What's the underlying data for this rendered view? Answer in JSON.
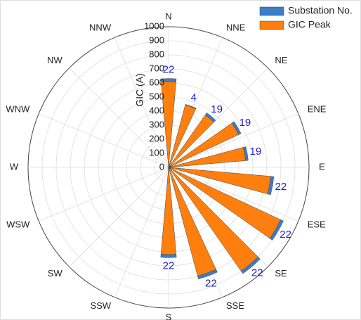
{
  "chart_data": {
    "type": "polar_bar",
    "y_label": "GIC (A)",
    "x": [
      0,
      20,
      40,
      60,
      80,
      100,
      120,
      140,
      160,
      180
    ],
    "series": [
      {
        "name": "GIC Peak",
        "color": "#ff7f0e",
        "values": [
          610,
          460,
          455,
          550,
          550,
          730,
          880,
          900,
          800,
          620
        ]
      },
      {
        "name": "Substation No.",
        "color": "#3a7dc8",
        "values": [
          22,
          4,
          19,
          19,
          19,
          22,
          22,
          22,
          22,
          22
        ]
      }
    ],
    "legend_order": [
      "Substation No.",
      "GIC Peak"
    ],
    "ylim": [
      0,
      1000
    ],
    "yticks": [
      0,
      100,
      200,
      300,
      400,
      500,
      600,
      700,
      800,
      900,
      1000
    ],
    "xticks": [
      {
        "value": 0,
        "label": "N"
      },
      {
        "value": 22.5,
        "label": "NNE"
      },
      {
        "value": 45,
        "label": "NE"
      },
      {
        "value": 67.5,
        "label": "ENE"
      },
      {
        "value": 90,
        "label": "E"
      },
      {
        "value": 112.5,
        "label": "ESE"
      },
      {
        "value": 135,
        "label": "SE"
      },
      {
        "value": 157.5,
        "label": "SSE"
      },
      {
        "value": 180,
        "label": "S"
      },
      {
        "value": 202.5,
        "label": "SSW"
      },
      {
        "value": 225,
        "label": "SW"
      },
      {
        "value": 247.5,
        "label": "WSW"
      },
      {
        "value": 270,
        "label": "W"
      },
      {
        "value": 292.5,
        "label": "WNW"
      },
      {
        "value": 315,
        "label": "NW"
      },
      {
        "value": 337.5,
        "label": "NNW"
      }
    ],
    "grid": true,
    "legend": "top-right",
    "value_label_color": "#2020d0"
  }
}
